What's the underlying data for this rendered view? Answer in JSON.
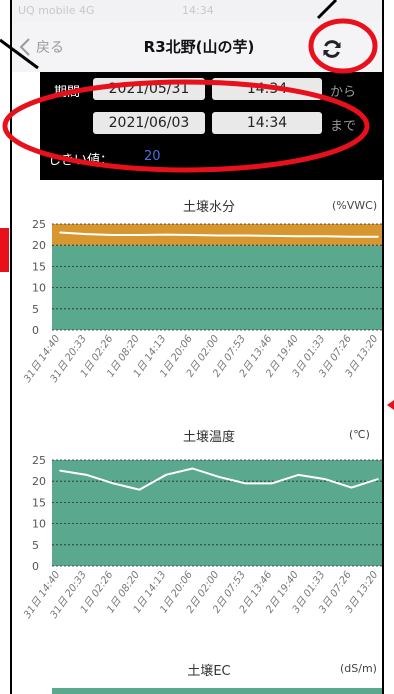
{
  "status_bar": {
    "carrier": "UQ mobile  4G",
    "time": "14:34"
  },
  "nav": {
    "back_label": "戻る",
    "title": "R3北野(山の芋)"
  },
  "filter": {
    "period_label": "期間",
    "start_date": "2021/05/31",
    "start_time": "14:34",
    "start_suffix": "から",
    "end_date": "2021/06/03",
    "end_time": "14:34",
    "end_suffix": "まで",
    "threshold_label": "しきい値：",
    "threshold_value": "20"
  },
  "charts": [
    {
      "title": "土壌水分",
      "unit": "(%VWC)"
    },
    {
      "title": "土壌温度",
      "unit": "(℃)"
    },
    {
      "title": "土壌EC",
      "unit": "(dS/m)"
    }
  ],
  "colors": {
    "moisture_band": "#d8962e",
    "teal_band": "#5aa88e",
    "threshold_text": "#4a6ee0",
    "annotation_red": "#e8101a"
  },
  "chart_data": [
    {
      "type": "area",
      "title": "土壌水分",
      "ylabel": "(%VWC)",
      "ylim": [
        0,
        25
      ],
      "yticks": [
        0,
        5,
        10,
        15,
        20,
        25
      ],
      "x": [
        "31日 14:40",
        "31日 20:33",
        "1日 02:26",
        "1日 08:20",
        "1日 14:13",
        "1日 20:06",
        "2日 02:00",
        "2日 07:53",
        "2日 13:46",
        "2日 19:40",
        "3日 01:33",
        "3日 07:26",
        "3日 13:20"
      ],
      "series": [
        {
          "values": [
            23,
            22.6,
            22.4,
            22.4,
            22.5,
            22.4,
            22.3,
            22.3,
            22.2,
            22.1,
            22.1,
            22.0,
            22.0
          ]
        }
      ],
      "bands": [
        {
          "from": 0,
          "to": 20,
          "color": "#5aa88e"
        },
        {
          "from": 20,
          "to": 25,
          "color": "#d8962e"
        }
      ]
    },
    {
      "type": "area",
      "title": "土壌温度",
      "ylabel": "(℃)",
      "ylim": [
        0,
        25
      ],
      "yticks": [
        0,
        5,
        10,
        15,
        20,
        25
      ],
      "x": [
        "31日 14:40",
        "31日 20:33",
        "1日 02:26",
        "1日 08:20",
        "1日 14:13",
        "1日 20:06",
        "2日 02:00",
        "2日 07:53",
        "2日 13:46",
        "2日 19:40",
        "3日 01:33",
        "3日 07:26",
        "3日 13:20"
      ],
      "series": [
        {
          "values": [
            22.5,
            21.5,
            19.5,
            18,
            21.5,
            23,
            21,
            19.5,
            19.5,
            21.5,
            20.5,
            18.5,
            20.5
          ]
        }
      ],
      "bands": [
        {
          "from": 0,
          "to": 25,
          "color": "#5aa88e"
        }
      ]
    }
  ]
}
